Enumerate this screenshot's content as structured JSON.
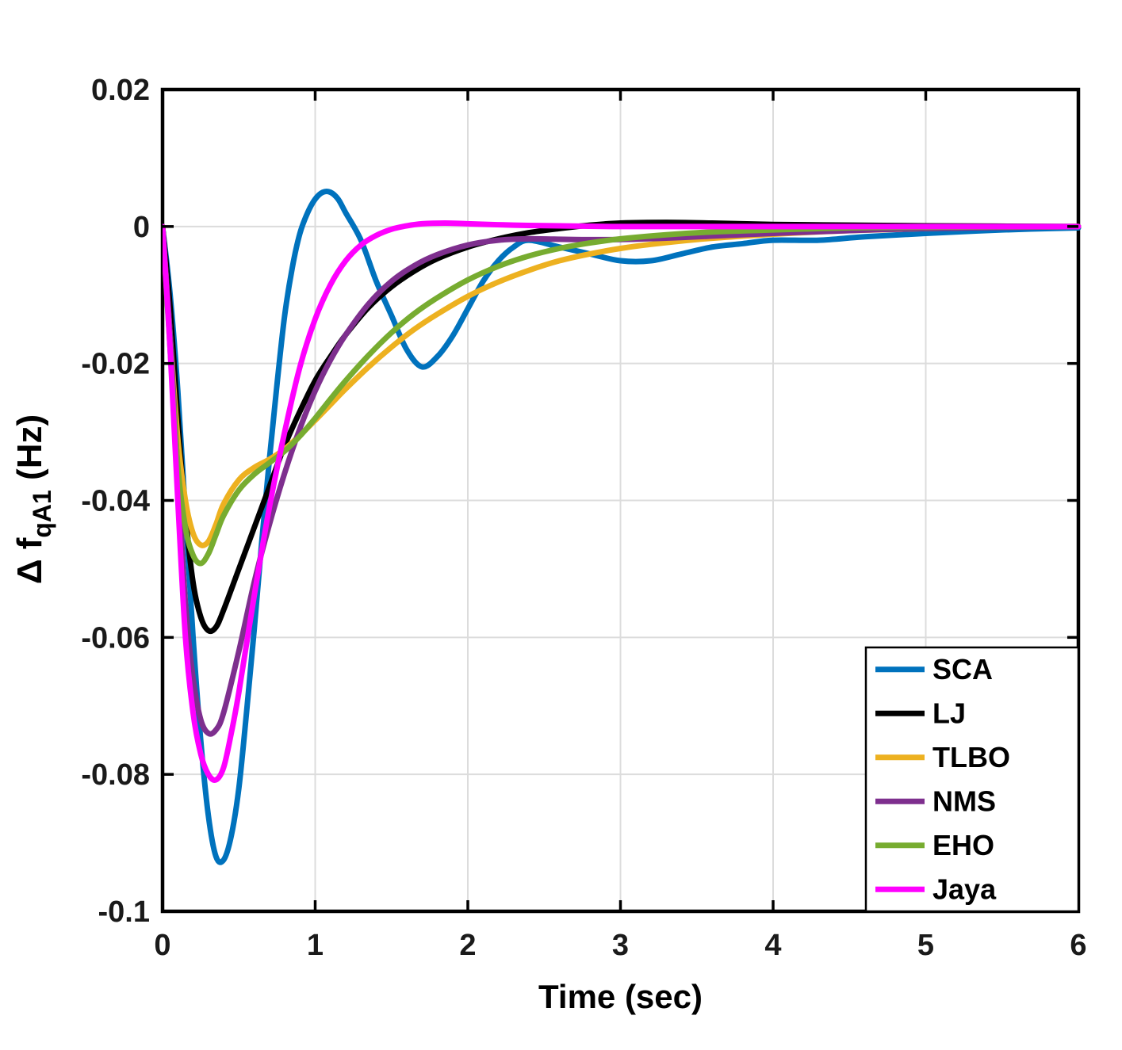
{
  "chart_data": {
    "type": "line",
    "title": "",
    "xlabel": "Time (sec)",
    "ylabel": "Δ f_qA1 (Hz)",
    "ylabel_parts": {
      "prefix": "Δ f",
      "subscript": "qA1",
      "suffix": " (Hz)"
    },
    "xlim": [
      0,
      6
    ],
    "ylim": [
      -0.1,
      0.02
    ],
    "xticks": [
      0,
      1,
      2,
      3,
      4,
      5,
      6
    ],
    "xtick_labels": [
      "0",
      "1",
      "2",
      "3",
      "4",
      "5",
      "6"
    ],
    "yticks": [
      0.02,
      0,
      -0.02,
      -0.04,
      -0.06,
      -0.08,
      -0.1
    ],
    "ytick_labels": [
      "0.02",
      "0",
      "-0.02",
      "-0.04",
      "-0.06",
      "-0.08",
      "-0.1"
    ],
    "grid": true,
    "legend_position": "lower right",
    "axis_color": "#000000",
    "grid_color": "#dcdcdc",
    "tick_label_color": "#1a1a1a",
    "series": [
      {
        "name": "SCA",
        "color": "#0072BD",
        "points": [
          [
            0,
            0
          ],
          [
            0.05,
            -0.01
          ],
          [
            0.1,
            -0.024
          ],
          [
            0.15,
            -0.042
          ],
          [
            0.2,
            -0.06
          ],
          [
            0.25,
            -0.075
          ],
          [
            0.3,
            -0.086
          ],
          [
            0.35,
            -0.092
          ],
          [
            0.4,
            -0.0925
          ],
          [
            0.45,
            -0.089
          ],
          [
            0.5,
            -0.082
          ],
          [
            0.55,
            -0.071
          ],
          [
            0.6,
            -0.059
          ],
          [
            0.65,
            -0.046
          ],
          [
            0.7,
            -0.034
          ],
          [
            0.75,
            -0.023
          ],
          [
            0.8,
            -0.013
          ],
          [
            0.85,
            -0.006
          ],
          [
            0.9,
            -0.001
          ],
          [
            0.95,
            0.002
          ],
          [
            1.0,
            0.004
          ],
          [
            1.05,
            0.005
          ],
          [
            1.1,
            0.005
          ],
          [
            1.15,
            0.004
          ],
          [
            1.2,
            0.002
          ],
          [
            1.3,
            -0.002
          ],
          [
            1.4,
            -0.008
          ],
          [
            1.5,
            -0.013
          ],
          [
            1.6,
            -0.018
          ],
          [
            1.7,
            -0.0205
          ],
          [
            1.8,
            -0.019
          ],
          [
            1.9,
            -0.016
          ],
          [
            2.0,
            -0.012
          ],
          [
            2.1,
            -0.008
          ],
          [
            2.2,
            -0.005
          ],
          [
            2.3,
            -0.003
          ],
          [
            2.4,
            -0.002
          ],
          [
            2.6,
            -0.003
          ],
          [
            2.8,
            -0.004
          ],
          [
            3.0,
            -0.005
          ],
          [
            3.2,
            -0.005
          ],
          [
            3.4,
            -0.004
          ],
          [
            3.6,
            -0.003
          ],
          [
            3.8,
            -0.0025
          ],
          [
            4.0,
            -0.002
          ],
          [
            4.3,
            -0.002
          ],
          [
            4.6,
            -0.0015
          ],
          [
            5.0,
            -0.001
          ],
          [
            5.5,
            -0.0005
          ],
          [
            6.0,
            -0.0002
          ]
        ]
      },
      {
        "name": "LJ",
        "color": "#000000",
        "points": [
          [
            0,
            0
          ],
          [
            0.05,
            -0.012
          ],
          [
            0.1,
            -0.028
          ],
          [
            0.15,
            -0.042
          ],
          [
            0.2,
            -0.052
          ],
          [
            0.25,
            -0.057
          ],
          [
            0.3,
            -0.059
          ],
          [
            0.35,
            -0.0585
          ],
          [
            0.4,
            -0.056
          ],
          [
            0.5,
            -0.05
          ],
          [
            0.6,
            -0.044
          ],
          [
            0.7,
            -0.038
          ],
          [
            0.8,
            -0.032
          ],
          [
            0.9,
            -0.027
          ],
          [
            1.0,
            -0.0225
          ],
          [
            1.1,
            -0.019
          ],
          [
            1.2,
            -0.0158
          ],
          [
            1.35,
            -0.0118
          ],
          [
            1.5,
            -0.0088
          ],
          [
            1.65,
            -0.0065
          ],
          [
            1.8,
            -0.0047
          ],
          [
            2.0,
            -0.003
          ],
          [
            2.2,
            -0.0018
          ],
          [
            2.4,
            -0.0009
          ],
          [
            2.6,
            -0.0003
          ],
          [
            2.8,
            0.0002
          ],
          [
            3.0,
            0.0005
          ],
          [
            3.3,
            0.0006
          ],
          [
            3.6,
            0.0005
          ],
          [
            4.0,
            0.0003
          ],
          [
            4.5,
            0.0002
          ],
          [
            5.0,
            0.0001
          ],
          [
            6.0,
            0
          ]
        ]
      },
      {
        "name": "TLBO",
        "color": "#EDB120",
        "points": [
          [
            0,
            0
          ],
          [
            0.05,
            -0.016
          ],
          [
            0.1,
            -0.031
          ],
          [
            0.15,
            -0.04
          ],
          [
            0.2,
            -0.0448
          ],
          [
            0.25,
            -0.0465
          ],
          [
            0.3,
            -0.046
          ],
          [
            0.35,
            -0.0435
          ],
          [
            0.4,
            -0.0405
          ],
          [
            0.5,
            -0.037
          ],
          [
            0.6,
            -0.0352
          ],
          [
            0.7,
            -0.034
          ],
          [
            0.8,
            -0.0325
          ],
          [
            0.9,
            -0.0305
          ],
          [
            1.0,
            -0.0283
          ],
          [
            1.1,
            -0.026
          ],
          [
            1.2,
            -0.0237
          ],
          [
            1.35,
            -0.0205
          ],
          [
            1.5,
            -0.0176
          ],
          [
            1.65,
            -0.015
          ],
          [
            1.8,
            -0.0128
          ],
          [
            2.0,
            -0.0102
          ],
          [
            2.2,
            -0.0081
          ],
          [
            2.4,
            -0.0064
          ],
          [
            2.6,
            -0.005
          ],
          [
            2.8,
            -0.004
          ],
          [
            3.0,
            -0.0032
          ],
          [
            3.2,
            -0.0026
          ],
          [
            3.5,
            -0.0019
          ],
          [
            3.8,
            -0.0014
          ],
          [
            4.1,
            -0.001
          ],
          [
            4.5,
            -0.0006
          ],
          [
            5.0,
            -0.0003
          ],
          [
            5.5,
            -0.0001
          ],
          [
            6.0,
            0
          ]
        ]
      },
      {
        "name": "NMS",
        "color": "#7E2F8E",
        "points": [
          [
            0,
            0
          ],
          [
            0.05,
            -0.016
          ],
          [
            0.1,
            -0.036
          ],
          [
            0.15,
            -0.055
          ],
          [
            0.2,
            -0.066
          ],
          [
            0.25,
            -0.072
          ],
          [
            0.3,
            -0.074
          ],
          [
            0.35,
            -0.0735
          ],
          [
            0.4,
            -0.071
          ],
          [
            0.5,
            -0.062
          ],
          [
            0.6,
            -0.052
          ],
          [
            0.7,
            -0.0435
          ],
          [
            0.8,
            -0.036
          ],
          [
            0.9,
            -0.0295
          ],
          [
            1.0,
            -0.024
          ],
          [
            1.1,
            -0.0195
          ],
          [
            1.2,
            -0.0158
          ],
          [
            1.35,
            -0.0113
          ],
          [
            1.5,
            -0.008
          ],
          [
            1.65,
            -0.0057
          ],
          [
            1.8,
            -0.0041
          ],
          [
            2.0,
            -0.0027
          ],
          [
            2.2,
            -0.002
          ],
          [
            2.4,
            -0.0018
          ],
          [
            2.7,
            -0.0019
          ],
          [
            3.0,
            -0.0019
          ],
          [
            3.3,
            -0.0017
          ],
          [
            3.6,
            -0.0014
          ],
          [
            4.0,
            -0.001
          ],
          [
            4.5,
            -0.0006
          ],
          [
            5.0,
            -0.0003
          ],
          [
            6.0,
            0
          ]
        ]
      },
      {
        "name": "EHO",
        "color": "#77AC30",
        "points": [
          [
            0,
            0
          ],
          [
            0.05,
            -0.018
          ],
          [
            0.1,
            -0.035
          ],
          [
            0.15,
            -0.044
          ],
          [
            0.2,
            -0.048
          ],
          [
            0.25,
            -0.0492
          ],
          [
            0.3,
            -0.0478
          ],
          [
            0.35,
            -0.045
          ],
          [
            0.4,
            -0.0422
          ],
          [
            0.5,
            -0.0385
          ],
          [
            0.6,
            -0.0362
          ],
          [
            0.7,
            -0.0345
          ],
          [
            0.8,
            -0.0328
          ],
          [
            0.9,
            -0.0306
          ],
          [
            1.0,
            -0.028
          ],
          [
            1.1,
            -0.0252
          ],
          [
            1.2,
            -0.0225
          ],
          [
            1.35,
            -0.0188
          ],
          [
            1.5,
            -0.0155
          ],
          [
            1.65,
            -0.0127
          ],
          [
            1.8,
            -0.0104
          ],
          [
            2.0,
            -0.0078
          ],
          [
            2.2,
            -0.0058
          ],
          [
            2.4,
            -0.0043
          ],
          [
            2.6,
            -0.0032
          ],
          [
            2.8,
            -0.0024
          ],
          [
            3.0,
            -0.0018
          ],
          [
            3.3,
            -0.0012
          ],
          [
            3.6,
            -0.0008
          ],
          [
            4.0,
            -0.0005
          ],
          [
            4.5,
            -0.0002
          ],
          [
            5.0,
            -0.0001
          ],
          [
            6.0,
            0
          ]
        ]
      },
      {
        "name": "Jaya",
        "color": "#FF00FF",
        "points": [
          [
            0,
            0
          ],
          [
            0.05,
            -0.018
          ],
          [
            0.1,
            -0.04
          ],
          [
            0.15,
            -0.06
          ],
          [
            0.2,
            -0.071
          ],
          [
            0.25,
            -0.077
          ],
          [
            0.3,
            -0.08
          ],
          [
            0.35,
            -0.0808
          ],
          [
            0.4,
            -0.079
          ],
          [
            0.45,
            -0.074
          ],
          [
            0.5,
            -0.068
          ],
          [
            0.6,
            -0.054
          ],
          [
            0.7,
            -0.041
          ],
          [
            0.8,
            -0.03
          ],
          [
            0.9,
            -0.0205
          ],
          [
            1.0,
            -0.0135
          ],
          [
            1.1,
            -0.0085
          ],
          [
            1.2,
            -0.005
          ],
          [
            1.3,
            -0.0027
          ],
          [
            1.4,
            -0.0013
          ],
          [
            1.5,
            -0.0004
          ],
          [
            1.6,
            0.0001
          ],
          [
            1.7,
            0.0004
          ],
          [
            1.85,
            0.0005
          ],
          [
            2.0,
            0.0004
          ],
          [
            2.3,
            0.0002
          ],
          [
            2.6,
            0.0001
          ],
          [
            3.0,
            0
          ],
          [
            4.0,
            0
          ],
          [
            5.0,
            0
          ],
          [
            6.0,
            0
          ]
        ]
      }
    ]
  }
}
